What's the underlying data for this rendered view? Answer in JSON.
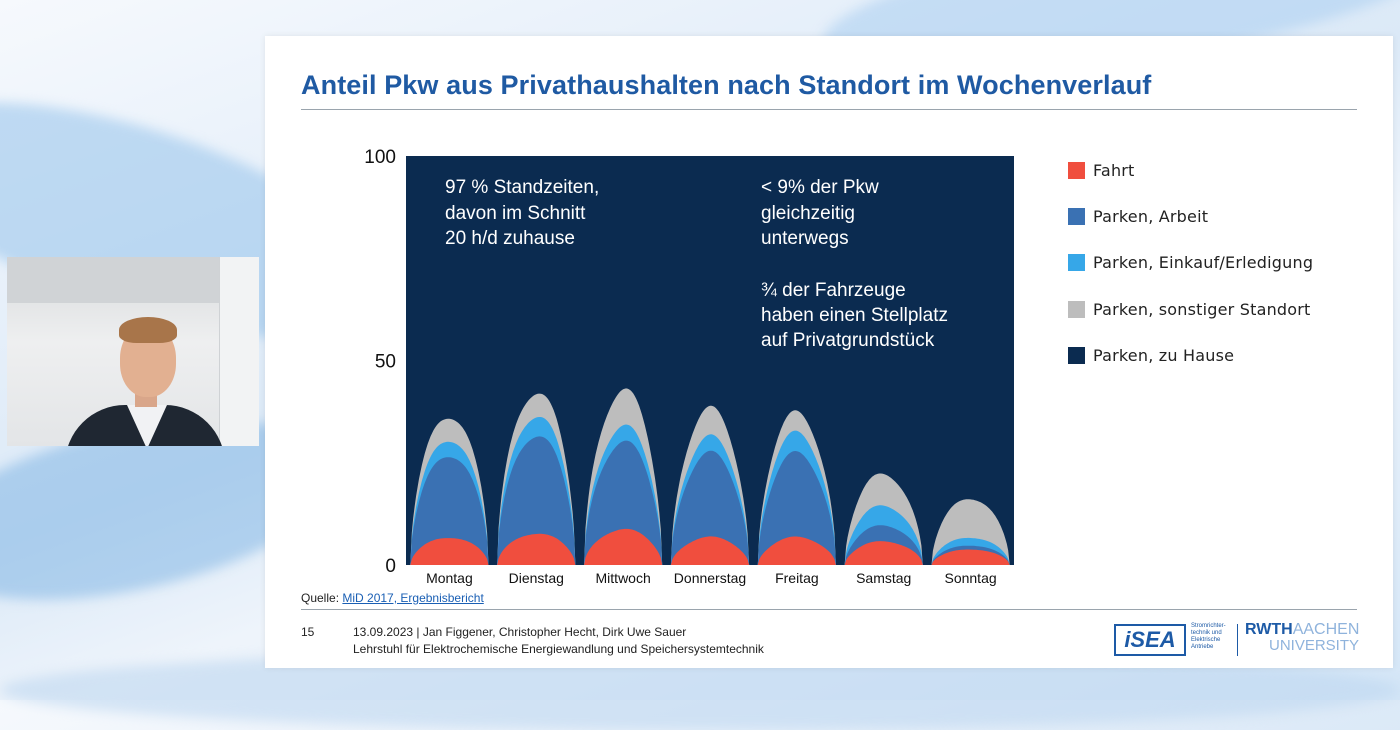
{
  "slide": {
    "title": "Anteil Pkw aus Privathaushalten nach Standort im Wochenverlauf",
    "source_label": "Quelle:",
    "source_link": "MiD 2017, Ergebnisbericht",
    "page_number": "15",
    "footer_line1": "13.09.2023  |  Jan Figgener, Christopher Hecht, Dirk Uwe Sauer",
    "footer_line2": "Lehrstuhl für Elektrochemische Energiewandlung und Speichersystemtechnik",
    "logos": {
      "isea": "iSEA",
      "isea_sub": "Stromrichter-technik und Elektrische Antriebe",
      "rwth_bold": "RWTH",
      "rwth_light": "AACHEN",
      "rwth_university": "UNIVERSITY"
    }
  },
  "chart_data": {
    "type": "area",
    "stacked": true,
    "ylim": [
      0,
      100
    ],
    "y_ticks": [
      "100",
      "50",
      "0"
    ],
    "categories": [
      "Montag",
      "Dienstag",
      "Mittwoch",
      "Donnerstag",
      "Freitag",
      "Samstag",
      "Sonntag"
    ],
    "series": [
      {
        "name": "Fahrt",
        "color": "#f04e3e",
        "day_peaks": [
          7,
          8,
          9,
          7,
          7,
          6,
          4
        ]
      },
      {
        "name": "Parken, Arbeit",
        "color": "#3a71b3",
        "day_peaks": [
          21,
          25,
          22,
          21,
          21,
          4,
          1
        ]
      },
      {
        "name": "Parken, Einkauf/Erledigung",
        "color": "#36a7e8",
        "day_peaks": [
          4,
          5,
          4,
          4,
          5,
          5,
          2
        ]
      },
      {
        "name": "Parken, sonstiger Standort",
        "color": "#bdbdbd",
        "day_peaks": [
          6,
          6,
          9,
          7,
          5,
          8,
          10
        ]
      },
      {
        "name": "Parken, zu Hause",
        "color": "#0b2b50",
        "fills_to": 100
      }
    ],
    "annotations": [
      "97 % Standzeiten,",
      "davon im Schnitt",
      "20 h/d zuhause",
      "< 9% der Pkw",
      "gleichzeitig",
      "unterwegs",
      "¾ der Fahrzeuge",
      "haben einen Stellplatz",
      "auf Privatgrundstück"
    ]
  }
}
